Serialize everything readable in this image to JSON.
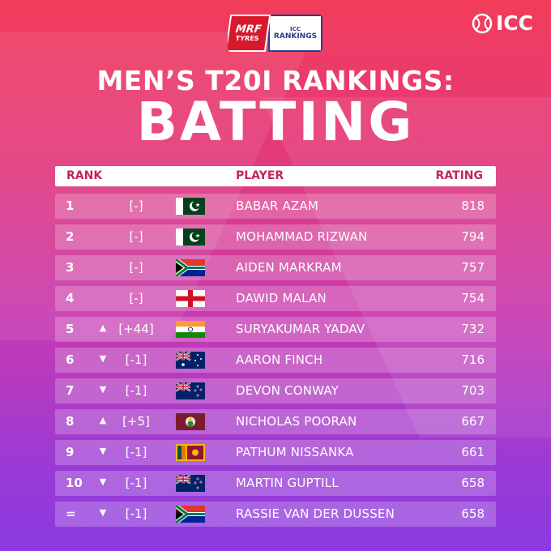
{
  "logos": {
    "mrf_line1": "MRF",
    "mrf_line2": "TYRES",
    "icc_rank_line1": "ICC",
    "icc_rank_line2": "RANKINGS",
    "icc_brand": "ICC"
  },
  "title": {
    "line1": "MEN’S T20I RANKINGS:",
    "line2": "BATTING"
  },
  "table": {
    "headers": {
      "rank": "RANK",
      "player": "PLAYER",
      "rating": "RATING"
    },
    "rows": [
      {
        "rank": "1",
        "arrow": "",
        "change": "[-]",
        "flag": "pakistan-flag",
        "player": "BABAR AZAM",
        "rating": "818"
      },
      {
        "rank": "2",
        "arrow": "",
        "change": "[-]",
        "flag": "pakistan-flag",
        "player": "MOHAMMAD RIZWAN",
        "rating": "794"
      },
      {
        "rank": "3",
        "arrow": "",
        "change": "[-]",
        "flag": "south-africa-flag",
        "player": "AIDEN MARKRAM",
        "rating": "757"
      },
      {
        "rank": "4",
        "arrow": "",
        "change": "[-]",
        "flag": "england-flag",
        "player": "DAWID MALAN",
        "rating": "754"
      },
      {
        "rank": "5",
        "arrow": "▲",
        "change": "[+44]",
        "flag": "india-flag",
        "player": "SURYAKUMAR YADAV",
        "rating": "732"
      },
      {
        "rank": "6",
        "arrow": "▼",
        "change": "[-1]",
        "flag": "australia-flag",
        "player": "AARON FINCH",
        "rating": "716"
      },
      {
        "rank": "7",
        "arrow": "▼",
        "change": "[-1]",
        "flag": "new-zealand-flag",
        "player": "DEVON CONWAY",
        "rating": "703"
      },
      {
        "rank": "8",
        "arrow": "▲",
        "change": "[+5]",
        "flag": "west-indies-flag",
        "player": "NICHOLAS POORAN",
        "rating": "667"
      },
      {
        "rank": "9",
        "arrow": "▼",
        "change": "[-1]",
        "flag": "sri-lanka-flag",
        "player": "PATHUM NISSANKA",
        "rating": "661"
      },
      {
        "rank": "10",
        "arrow": "▼",
        "change": "[-1]",
        "flag": "new-zealand-flag",
        "player": "MARTIN GUPTILL",
        "rating": "658"
      },
      {
        "rank": "=",
        "arrow": "▼",
        "change": "[-1]",
        "flag": "south-africa-flag",
        "player": "RASSIE VAN DER DUSSEN",
        "rating": "658"
      }
    ]
  },
  "colors": {
    "background_top": "#f23c5a",
    "background_bottom": "#8b3ae0",
    "header_text": "#c4245a"
  }
}
